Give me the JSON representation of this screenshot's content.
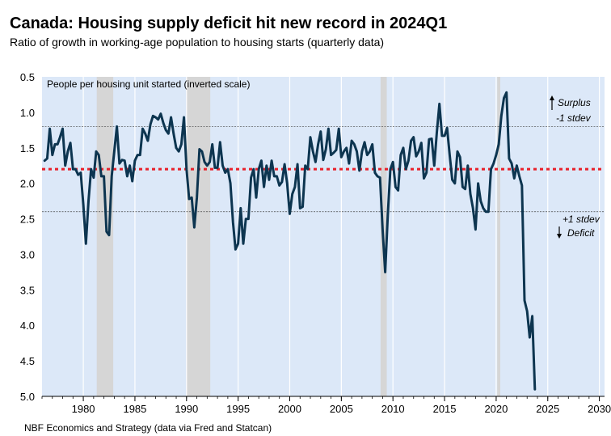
{
  "chart_data": {
    "type": "line",
    "title": "Canada: Housing supply deficit hit new record in 2024Q1",
    "subtitle": "Ratio of growth in working-age population to housing starts (quarterly data)",
    "source": "NBF Economics and Strategy (data via Fred and Statcan)",
    "inner_label": "People per housing unit started (inverted scale)",
    "xlim": [
      1976,
      2030.5
    ],
    "ylim": [
      0.5,
      5.0
    ],
    "y_inverted": true,
    "x_ticks": [
      1980,
      1985,
      1990,
      1995,
      2000,
      2005,
      2010,
      2015,
      2020,
      2025,
      2030
    ],
    "x_tick_labels": [
      "1980",
      "1985",
      "1990",
      "1995",
      "2000",
      "2005",
      "2010",
      "2015",
      "2020",
      "2025",
      "2030"
    ],
    "y_ticks": [
      0.5,
      1.0,
      1.5,
      2.0,
      2.5,
      3.0,
      3.5,
      4.0,
      4.5,
      5.0
    ],
    "y_tick_labels": [
      "0.5",
      "1.0",
      "1.5",
      "2.0",
      "2.5",
      "3.0",
      "3.5",
      "4.0",
      "4.5",
      "5.0"
    ],
    "recessions": [
      [
        1981.3,
        1982.9
      ],
      [
        1990.0,
        1992.3
      ],
      [
        2008.8,
        2009.4
      ],
      [
        2020.1,
        2020.4
      ]
    ],
    "mean_line": 1.8,
    "upper_line": 1.2,
    "lower_line": 2.4,
    "annotations": {
      "surplus": "Surplus",
      "minus_stdev": "-1 stdev",
      "plus_stdev": "+1 stdev",
      "deficit": "Deficit"
    },
    "series": [
      {
        "name": "Ratio of growth in working-age population to housing starts",
        "color": "#0d3550",
        "points": [
          [
            1976.25,
            1.68
          ],
          [
            1976.5,
            1.65
          ],
          [
            1976.75,
            1.23
          ],
          [
            1977.0,
            1.6
          ],
          [
            1977.25,
            1.45
          ],
          [
            1977.5,
            1.45
          ],
          [
            1977.75,
            1.35
          ],
          [
            1978.0,
            1.23
          ],
          [
            1978.25,
            1.75
          ],
          [
            1978.5,
            1.55
          ],
          [
            1978.75,
            1.43
          ],
          [
            1979.0,
            1.8
          ],
          [
            1979.25,
            1.8
          ],
          [
            1979.5,
            1.88
          ],
          [
            1979.75,
            1.85
          ],
          [
            1980.0,
            2.3
          ],
          [
            1980.25,
            2.85
          ],
          [
            1980.5,
            2.25
          ],
          [
            1980.75,
            1.8
          ],
          [
            1981.0,
            1.92
          ],
          [
            1981.25,
            1.55
          ],
          [
            1981.5,
            1.6
          ],
          [
            1981.75,
            1.9
          ],
          [
            1982.0,
            1.9
          ],
          [
            1982.25,
            2.68
          ],
          [
            1982.5,
            2.73
          ],
          [
            1982.75,
            1.9
          ],
          [
            1983.0,
            1.55
          ],
          [
            1983.25,
            1.2
          ],
          [
            1983.5,
            1.72
          ],
          [
            1983.75,
            1.67
          ],
          [
            1984.0,
            1.68
          ],
          [
            1984.25,
            1.9
          ],
          [
            1984.5,
            1.75
          ],
          [
            1984.75,
            1.97
          ],
          [
            1985.0,
            1.68
          ],
          [
            1985.25,
            1.6
          ],
          [
            1985.5,
            1.6
          ],
          [
            1985.75,
            1.23
          ],
          [
            1986.0,
            1.3
          ],
          [
            1986.25,
            1.4
          ],
          [
            1986.5,
            1.17
          ],
          [
            1986.75,
            1.05
          ],
          [
            1987.0,
            1.07
          ],
          [
            1987.25,
            1.1
          ],
          [
            1987.5,
            1.02
          ],
          [
            1987.75,
            1.15
          ],
          [
            1988.0,
            1.25
          ],
          [
            1988.25,
            1.3
          ],
          [
            1988.5,
            1.07
          ],
          [
            1988.75,
            1.3
          ],
          [
            1989.0,
            1.5
          ],
          [
            1989.25,
            1.55
          ],
          [
            1989.5,
            1.45
          ],
          [
            1989.75,
            1.07
          ],
          [
            1990.0,
            1.8
          ],
          [
            1990.25,
            2.22
          ],
          [
            1990.5,
            2.2
          ],
          [
            1990.75,
            2.62
          ],
          [
            1991.0,
            2.2
          ],
          [
            1991.25,
            1.52
          ],
          [
            1991.5,
            1.55
          ],
          [
            1991.75,
            1.7
          ],
          [
            1992.0,
            1.75
          ],
          [
            1992.25,
            1.7
          ],
          [
            1992.5,
            1.45
          ],
          [
            1992.75,
            1.78
          ],
          [
            1993.0,
            1.78
          ],
          [
            1993.25,
            1.42
          ],
          [
            1993.5,
            1.75
          ],
          [
            1993.75,
            1.85
          ],
          [
            1994.0,
            1.8
          ],
          [
            1994.25,
            2.0
          ],
          [
            1994.5,
            2.55
          ],
          [
            1994.75,
            2.93
          ],
          [
            1995.0,
            2.85
          ],
          [
            1995.25,
            2.35
          ],
          [
            1995.5,
            2.85
          ],
          [
            1995.75,
            2.5
          ],
          [
            1996.0,
            2.5
          ],
          [
            1996.25,
            1.92
          ],
          [
            1996.5,
            1.8
          ],
          [
            1996.75,
            2.2
          ],
          [
            1997.0,
            1.8
          ],
          [
            1997.25,
            1.68
          ],
          [
            1997.5,
            2.05
          ],
          [
            1997.75,
            1.75
          ],
          [
            1998.0,
            1.95
          ],
          [
            1998.25,
            1.68
          ],
          [
            1998.5,
            1.9
          ],
          [
            1998.75,
            1.9
          ],
          [
            1999.0,
            2.03
          ],
          [
            1999.25,
            1.98
          ],
          [
            1999.5,
            1.73
          ],
          [
            1999.75,
            2.0
          ],
          [
            2000.0,
            2.43
          ],
          [
            2000.25,
            2.15
          ],
          [
            2000.5,
            2.05
          ],
          [
            2000.75,
            1.73
          ],
          [
            2001.0,
            2.35
          ],
          [
            2001.25,
            2.33
          ],
          [
            2001.5,
            1.75
          ],
          [
            2001.75,
            1.8
          ],
          [
            2002.0,
            1.35
          ],
          [
            2002.25,
            1.55
          ],
          [
            2002.5,
            1.7
          ],
          [
            2002.75,
            1.45
          ],
          [
            2003.0,
            1.27
          ],
          [
            2003.25,
            1.67
          ],
          [
            2003.5,
            1.52
          ],
          [
            2003.75,
            1.23
          ],
          [
            2004.0,
            1.6
          ],
          [
            2004.25,
            1.57
          ],
          [
            2004.5,
            1.53
          ],
          [
            2004.75,
            1.23
          ],
          [
            2005.0,
            1.63
          ],
          [
            2005.25,
            1.55
          ],
          [
            2005.5,
            1.5
          ],
          [
            2005.75,
            1.72
          ],
          [
            2006.0,
            1.4
          ],
          [
            2006.25,
            1.45
          ],
          [
            2006.5,
            1.55
          ],
          [
            2006.75,
            1.82
          ],
          [
            2007.0,
            1.55
          ],
          [
            2007.25,
            1.42
          ],
          [
            2007.5,
            1.6
          ],
          [
            2007.75,
            1.55
          ],
          [
            2008.0,
            1.45
          ],
          [
            2008.25,
            1.85
          ],
          [
            2008.5,
            1.9
          ],
          [
            2008.75,
            1.92
          ],
          [
            2009.0,
            2.65
          ],
          [
            2009.25,
            3.25
          ],
          [
            2009.5,
            2.45
          ],
          [
            2009.75,
            1.8
          ],
          [
            2010.0,
            1.7
          ],
          [
            2010.25,
            2.05
          ],
          [
            2010.5,
            2.1
          ],
          [
            2010.75,
            1.6
          ],
          [
            2011.0,
            1.5
          ],
          [
            2011.25,
            1.8
          ],
          [
            2011.5,
            1.68
          ],
          [
            2011.75,
            1.4
          ],
          [
            2012.0,
            1.35
          ],
          [
            2012.25,
            1.62
          ],
          [
            2012.5,
            1.55
          ],
          [
            2012.75,
            1.43
          ],
          [
            2013.0,
            1.93
          ],
          [
            2013.25,
            1.85
          ],
          [
            2013.5,
            1.38
          ],
          [
            2013.75,
            1.37
          ],
          [
            2014.0,
            1.75
          ],
          [
            2014.25,
            1.28
          ],
          [
            2014.5,
            0.88
          ],
          [
            2014.75,
            1.33
          ],
          [
            2015.0,
            1.33
          ],
          [
            2015.25,
            1.22
          ],
          [
            2015.5,
            1.6
          ],
          [
            2015.75,
            1.95
          ],
          [
            2016.0,
            2.0
          ],
          [
            2016.25,
            1.55
          ],
          [
            2016.5,
            1.63
          ],
          [
            2016.75,
            2.05
          ],
          [
            2017.0,
            2.08
          ],
          [
            2017.25,
            1.75
          ],
          [
            2017.5,
            2.15
          ],
          [
            2017.75,
            2.35
          ],
          [
            2018.0,
            2.65
          ],
          [
            2018.25,
            2.0
          ],
          [
            2018.5,
            2.25
          ],
          [
            2018.75,
            2.35
          ],
          [
            2019.0,
            2.4
          ],
          [
            2019.25,
            2.4
          ],
          [
            2019.5,
            1.8
          ],
          [
            2019.75,
            1.72
          ],
          [
            2020.0,
            1.6
          ],
          [
            2020.25,
            1.45
          ],
          [
            2020.5,
            1.05
          ],
          [
            2020.75,
            0.8
          ],
          [
            2021.0,
            0.72
          ],
          [
            2021.25,
            1.65
          ],
          [
            2021.5,
            1.72
          ],
          [
            2021.75,
            1.93
          ],
          [
            2022.0,
            1.75
          ],
          [
            2022.25,
            1.9
          ],
          [
            2022.5,
            2.03
          ],
          [
            2022.75,
            3.65
          ],
          [
            2023.0,
            3.8
          ],
          [
            2023.25,
            4.17
          ],
          [
            2023.5,
            3.87
          ],
          [
            2023.75,
            4.9
          ]
        ]
      }
    ]
  }
}
